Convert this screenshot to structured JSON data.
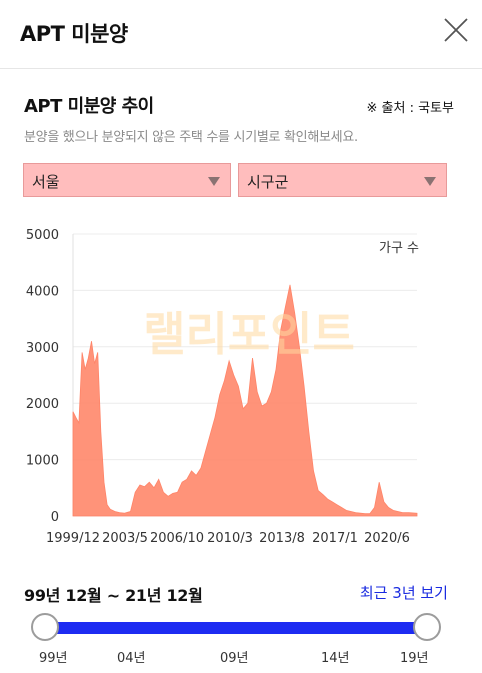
{
  "header": {
    "title": "APT 미분양"
  },
  "section": {
    "title": "APT 미분양 추이",
    "source": "※ 출처 : 국토부",
    "description": "분양을 했으나 분양되지 않은 주택 수를 시기별로 확인해보세요."
  },
  "filters": {
    "city": {
      "value": "서울"
    },
    "district": {
      "value": "시구군"
    }
  },
  "chart_data": {
    "type": "area",
    "unit_label": "가구 수",
    "watermark": "랠리포인트",
    "ylim": [
      0,
      5000
    ],
    "yticks": [
      0,
      1000,
      2000,
      3000,
      4000,
      5000
    ],
    "xtick_labels": [
      "1999/12",
      "2003/5",
      "2006/10",
      "2010/3",
      "2013/8",
      "2017/1",
      "2020/6"
    ],
    "xlim": [
      1999.92,
      2021.92
    ],
    "color": "#ff8a6e",
    "series": [
      {
        "values": [
          [
            1999.92,
            1850
          ],
          [
            2000.1,
            1750
          ],
          [
            2000.3,
            1650
          ],
          [
            2000.5,
            2900
          ],
          [
            2000.7,
            2600
          ],
          [
            2000.9,
            2800
          ],
          [
            2001.1,
            3100
          ],
          [
            2001.3,
            2700
          ],
          [
            2001.5,
            2900
          ],
          [
            2001.7,
            1500
          ],
          [
            2001.9,
            600
          ],
          [
            2002.1,
            200
          ],
          [
            2002.3,
            120
          ],
          [
            2002.6,
            80
          ],
          [
            2002.9,
            60
          ],
          [
            2003.2,
            50
          ],
          [
            2003.6,
            80
          ],
          [
            2003.9,
            420
          ],
          [
            2004.2,
            550
          ],
          [
            2004.5,
            520
          ],
          [
            2004.8,
            600
          ],
          [
            2005.1,
            500
          ],
          [
            2005.4,
            650
          ],
          [
            2005.7,
            420
          ],
          [
            2006.0,
            350
          ],
          [
            2006.3,
            400
          ],
          [
            2006.6,
            420
          ],
          [
            2006.9,
            600
          ],
          [
            2007.2,
            650
          ],
          [
            2007.5,
            800
          ],
          [
            2007.8,
            720
          ],
          [
            2008.1,
            850
          ],
          [
            2008.4,
            1150
          ],
          [
            2008.7,
            1450
          ],
          [
            2009.0,
            1750
          ],
          [
            2009.3,
            2150
          ],
          [
            2009.6,
            2400
          ],
          [
            2009.9,
            2750
          ],
          [
            2010.2,
            2500
          ],
          [
            2010.5,
            2300
          ],
          [
            2010.8,
            1900
          ],
          [
            2011.1,
            2000
          ],
          [
            2011.4,
            2800
          ],
          [
            2011.7,
            2200
          ],
          [
            2012.0,
            1950
          ],
          [
            2012.3,
            2000
          ],
          [
            2012.6,
            2200
          ],
          [
            2012.9,
            2600
          ],
          [
            2013.2,
            3300
          ],
          [
            2013.5,
            3700
          ],
          [
            2013.8,
            4100
          ],
          [
            2014.1,
            3600
          ],
          [
            2014.4,
            3000
          ],
          [
            2014.7,
            2300
          ],
          [
            2015.0,
            1500
          ],
          [
            2015.3,
            800
          ],
          [
            2015.6,
            450
          ],
          [
            2015.9,
            380
          ],
          [
            2016.2,
            300
          ],
          [
            2016.5,
            250
          ],
          [
            2016.8,
            200
          ],
          [
            2017.1,
            150
          ],
          [
            2017.4,
            100
          ],
          [
            2017.7,
            80
          ],
          [
            2018.0,
            60
          ],
          [
            2018.3,
            50
          ],
          [
            2018.6,
            40
          ],
          [
            2018.9,
            40
          ],
          [
            2019.2,
            150
          ],
          [
            2019.5,
            600
          ],
          [
            2019.8,
            250
          ],
          [
            2020.1,
            150
          ],
          [
            2020.4,
            100
          ],
          [
            2020.7,
            80
          ],
          [
            2021.0,
            60
          ],
          [
            2021.4,
            60
          ],
          [
            2021.92,
            50
          ]
        ]
      }
    ]
  },
  "range": {
    "label": "99년 12월 ~ 21년 12월",
    "recent_button": "최근 3년 보기",
    "ticks": [
      "99년",
      "04년",
      "09년",
      "14년",
      "19년"
    ],
    "colors": {
      "track": "#1d2bf2",
      "accent_text": "#1a2be0"
    }
  }
}
